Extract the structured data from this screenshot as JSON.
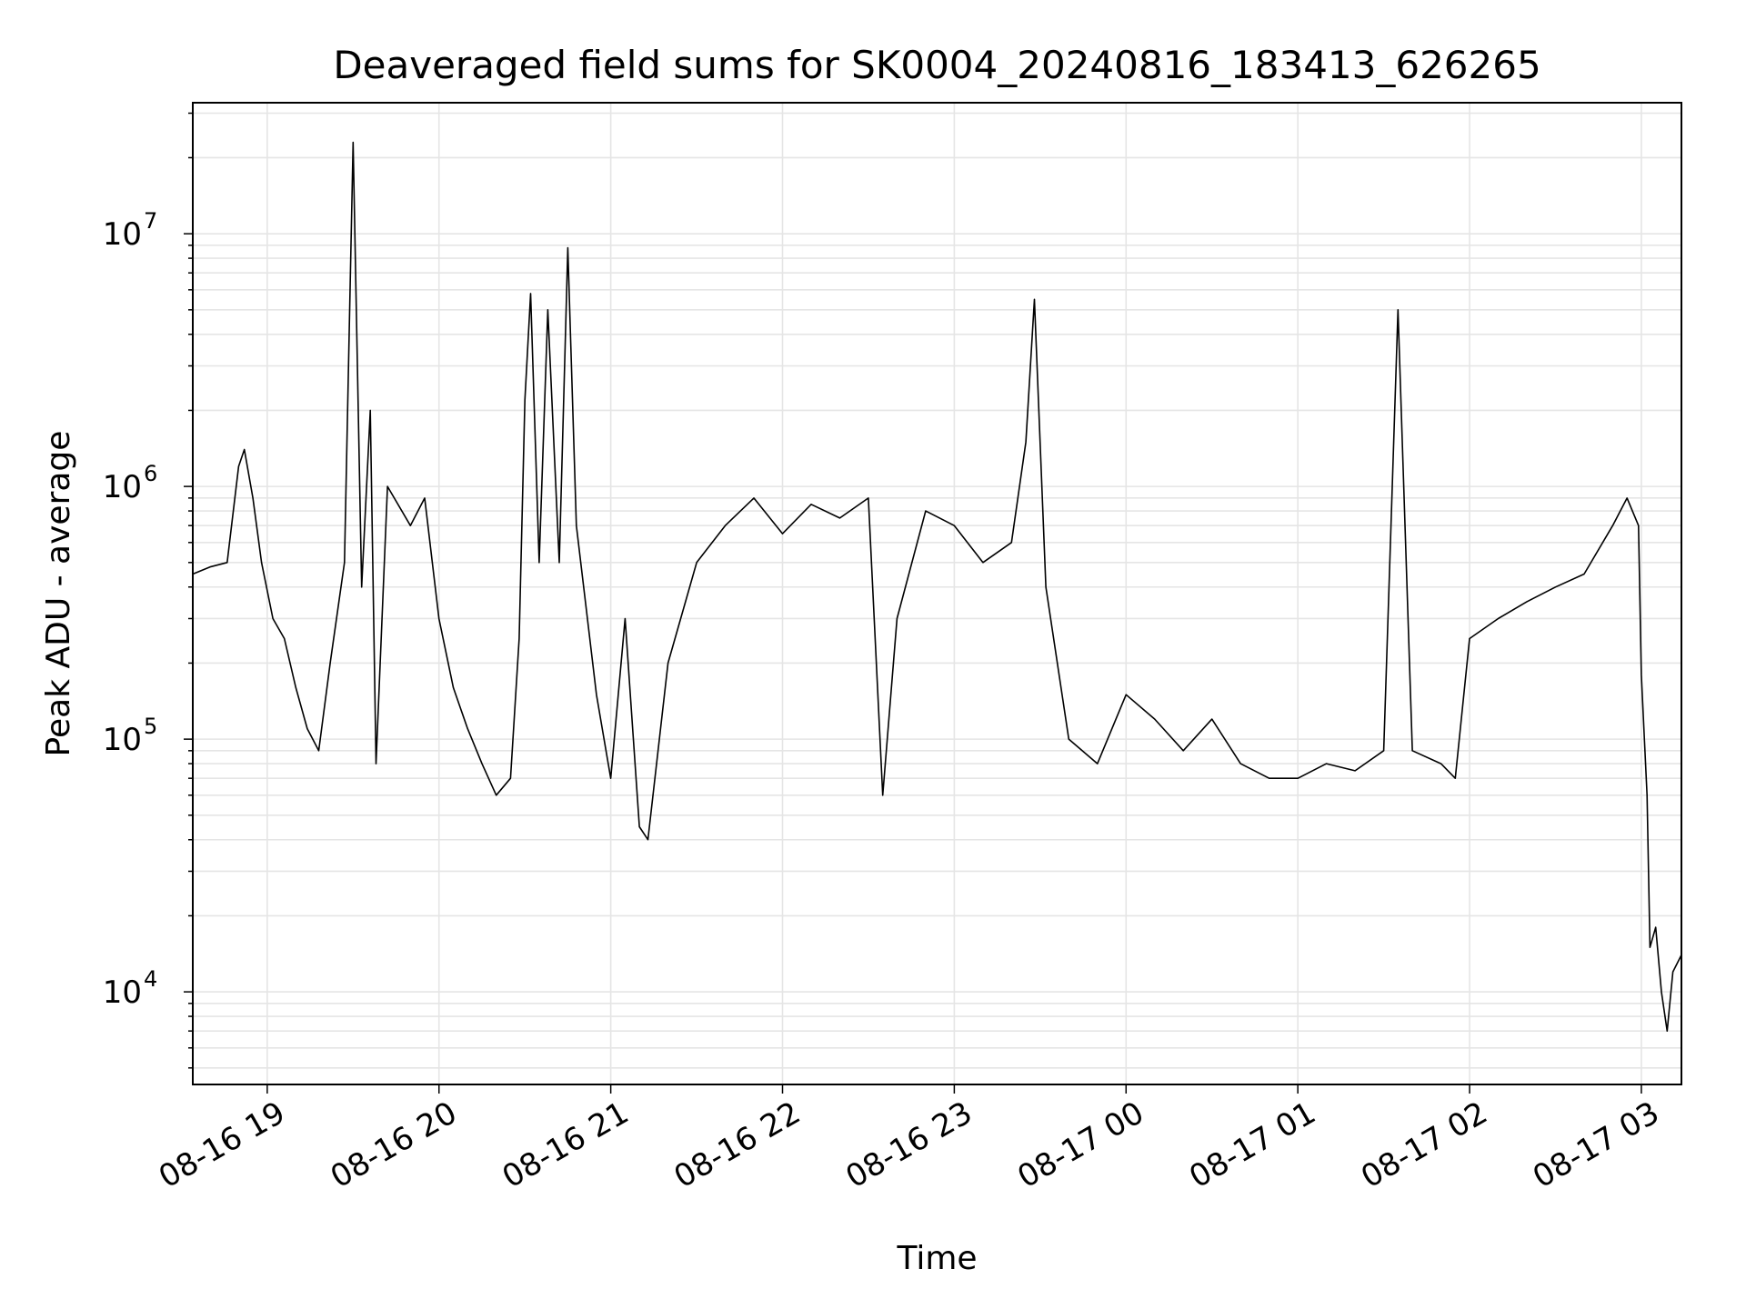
{
  "chart_data": {
    "type": "line",
    "title": "Deaveraged field sums for SK0004_20240816_183413_626265",
    "xlabel": "Time",
    "ylabel": "Peak ADU - average",
    "y_scale": "log",
    "ylim": [
      4300,
      33000000
    ],
    "xlim": [
      "2024-08-16 18:34",
      "2024-08-17 03:14"
    ],
    "grid": true,
    "line_color": "#000000",
    "grid_color": "#e5e5e5",
    "x_ticks": [
      "08-16 19",
      "08-16 20",
      "08-16 21",
      "08-16 22",
      "08-16 23",
      "08-17 00",
      "08-17 01",
      "08-17 02",
      "08-17 03"
    ],
    "y_ticks": [
      {
        "base": "10",
        "exp": "4",
        "value": 10000
      },
      {
        "base": "10",
        "exp": "5",
        "value": 100000
      },
      {
        "base": "10",
        "exp": "6",
        "value": 1000000
      },
      {
        "base": "10",
        "exp": "7",
        "value": 10000000
      }
    ],
    "series": [
      {
        "points": [
          [
            "2024-08-16 18:34",
            450000
          ],
          [
            "2024-08-16 18:40",
            480000
          ],
          [
            "2024-08-16 18:46",
            500000
          ],
          [
            "2024-08-16 18:50",
            1200000
          ],
          [
            "2024-08-16 18:52",
            1400000
          ],
          [
            "2024-08-16 18:55",
            900000
          ],
          [
            "2024-08-16 18:58",
            500000
          ],
          [
            "2024-08-16 19:02",
            300000
          ],
          [
            "2024-08-16 19:06",
            250000
          ],
          [
            "2024-08-16 19:10",
            160000
          ],
          [
            "2024-08-16 19:14",
            110000
          ],
          [
            "2024-08-16 19:18",
            90000
          ],
          [
            "2024-08-16 19:22",
            200000
          ],
          [
            "2024-08-16 19:27",
            500000
          ],
          [
            "2024-08-16 19:30",
            23000000
          ],
          [
            "2024-08-16 19:33",
            400000
          ],
          [
            "2024-08-16 19:36",
            2000000
          ],
          [
            "2024-08-16 19:38",
            80000
          ],
          [
            "2024-08-16 19:42",
            1000000
          ],
          [
            "2024-08-16 19:50",
            700000
          ],
          [
            "2024-08-16 19:55",
            900000
          ],
          [
            "2024-08-16 20:00",
            300000
          ],
          [
            "2024-08-16 20:05",
            160000
          ],
          [
            "2024-08-16 20:10",
            110000
          ],
          [
            "2024-08-16 20:15",
            80000
          ],
          [
            "2024-08-16 20:20",
            60000
          ],
          [
            "2024-08-16 20:25",
            70000
          ],
          [
            "2024-08-16 20:28",
            250000
          ],
          [
            "2024-08-16 20:30",
            2200000
          ],
          [
            "2024-08-16 20:32",
            5800000
          ],
          [
            "2024-08-16 20:35",
            500000
          ],
          [
            "2024-08-16 20:38",
            5000000
          ],
          [
            "2024-08-16 20:42",
            500000
          ],
          [
            "2024-08-16 20:45",
            8800000
          ],
          [
            "2024-08-16 20:48",
            700000
          ],
          [
            "2024-08-16 20:55",
            150000
          ],
          [
            "2024-08-16 21:00",
            70000
          ],
          [
            "2024-08-16 21:05",
            300000
          ],
          [
            "2024-08-16 21:10",
            45000
          ],
          [
            "2024-08-16 21:13",
            40000
          ],
          [
            "2024-08-16 21:20",
            200000
          ],
          [
            "2024-08-16 21:30",
            500000
          ],
          [
            "2024-08-16 21:40",
            700000
          ],
          [
            "2024-08-16 21:50",
            900000
          ],
          [
            "2024-08-16 22:00",
            650000
          ],
          [
            "2024-08-16 22:10",
            850000
          ],
          [
            "2024-08-16 22:20",
            750000
          ],
          [
            "2024-08-16 22:30",
            900000
          ],
          [
            "2024-08-16 22:35",
            60000
          ],
          [
            "2024-08-16 22:40",
            300000
          ],
          [
            "2024-08-16 22:50",
            800000
          ],
          [
            "2024-08-16 23:00",
            700000
          ],
          [
            "2024-08-16 23:10",
            500000
          ],
          [
            "2024-08-16 23:20",
            600000
          ],
          [
            "2024-08-16 23:25",
            1500000
          ],
          [
            "2024-08-16 23:28",
            5500000
          ],
          [
            "2024-08-16 23:32",
            400000
          ],
          [
            "2024-08-16 23:40",
            100000
          ],
          [
            "2024-08-16 23:50",
            80000
          ],
          [
            "2024-08-17 00:00",
            150000
          ],
          [
            "2024-08-17 00:10",
            120000
          ],
          [
            "2024-08-17 00:20",
            90000
          ],
          [
            "2024-08-17 00:30",
            120000
          ],
          [
            "2024-08-17 00:40",
            80000
          ],
          [
            "2024-08-17 00:50",
            70000
          ],
          [
            "2024-08-17 01:00",
            70000
          ],
          [
            "2024-08-17 01:10",
            80000
          ],
          [
            "2024-08-17 01:20",
            75000
          ],
          [
            "2024-08-17 01:30",
            90000
          ],
          [
            "2024-08-17 01:35",
            5000000
          ],
          [
            "2024-08-17 01:40",
            90000
          ],
          [
            "2024-08-17 01:50",
            80000
          ],
          [
            "2024-08-17 01:55",
            70000
          ],
          [
            "2024-08-17 02:00",
            250000
          ],
          [
            "2024-08-17 02:10",
            300000
          ],
          [
            "2024-08-17 02:20",
            350000
          ],
          [
            "2024-08-17 02:30",
            400000
          ],
          [
            "2024-08-17 02:40",
            450000
          ],
          [
            "2024-08-17 02:50",
            700000
          ],
          [
            "2024-08-17 02:55",
            900000
          ],
          [
            "2024-08-17 02:59",
            700000
          ],
          [
            "2024-08-17 03:00",
            180000
          ],
          [
            "2024-08-17 03:02",
            60000
          ],
          [
            "2024-08-17 03:03",
            15000
          ],
          [
            "2024-08-17 03:05",
            18000
          ],
          [
            "2024-08-17 03:07",
            10000
          ],
          [
            "2024-08-17 03:09",
            7000
          ],
          [
            "2024-08-17 03:11",
            12000
          ],
          [
            "2024-08-17 03:14",
            14000
          ]
        ]
      }
    ]
  }
}
